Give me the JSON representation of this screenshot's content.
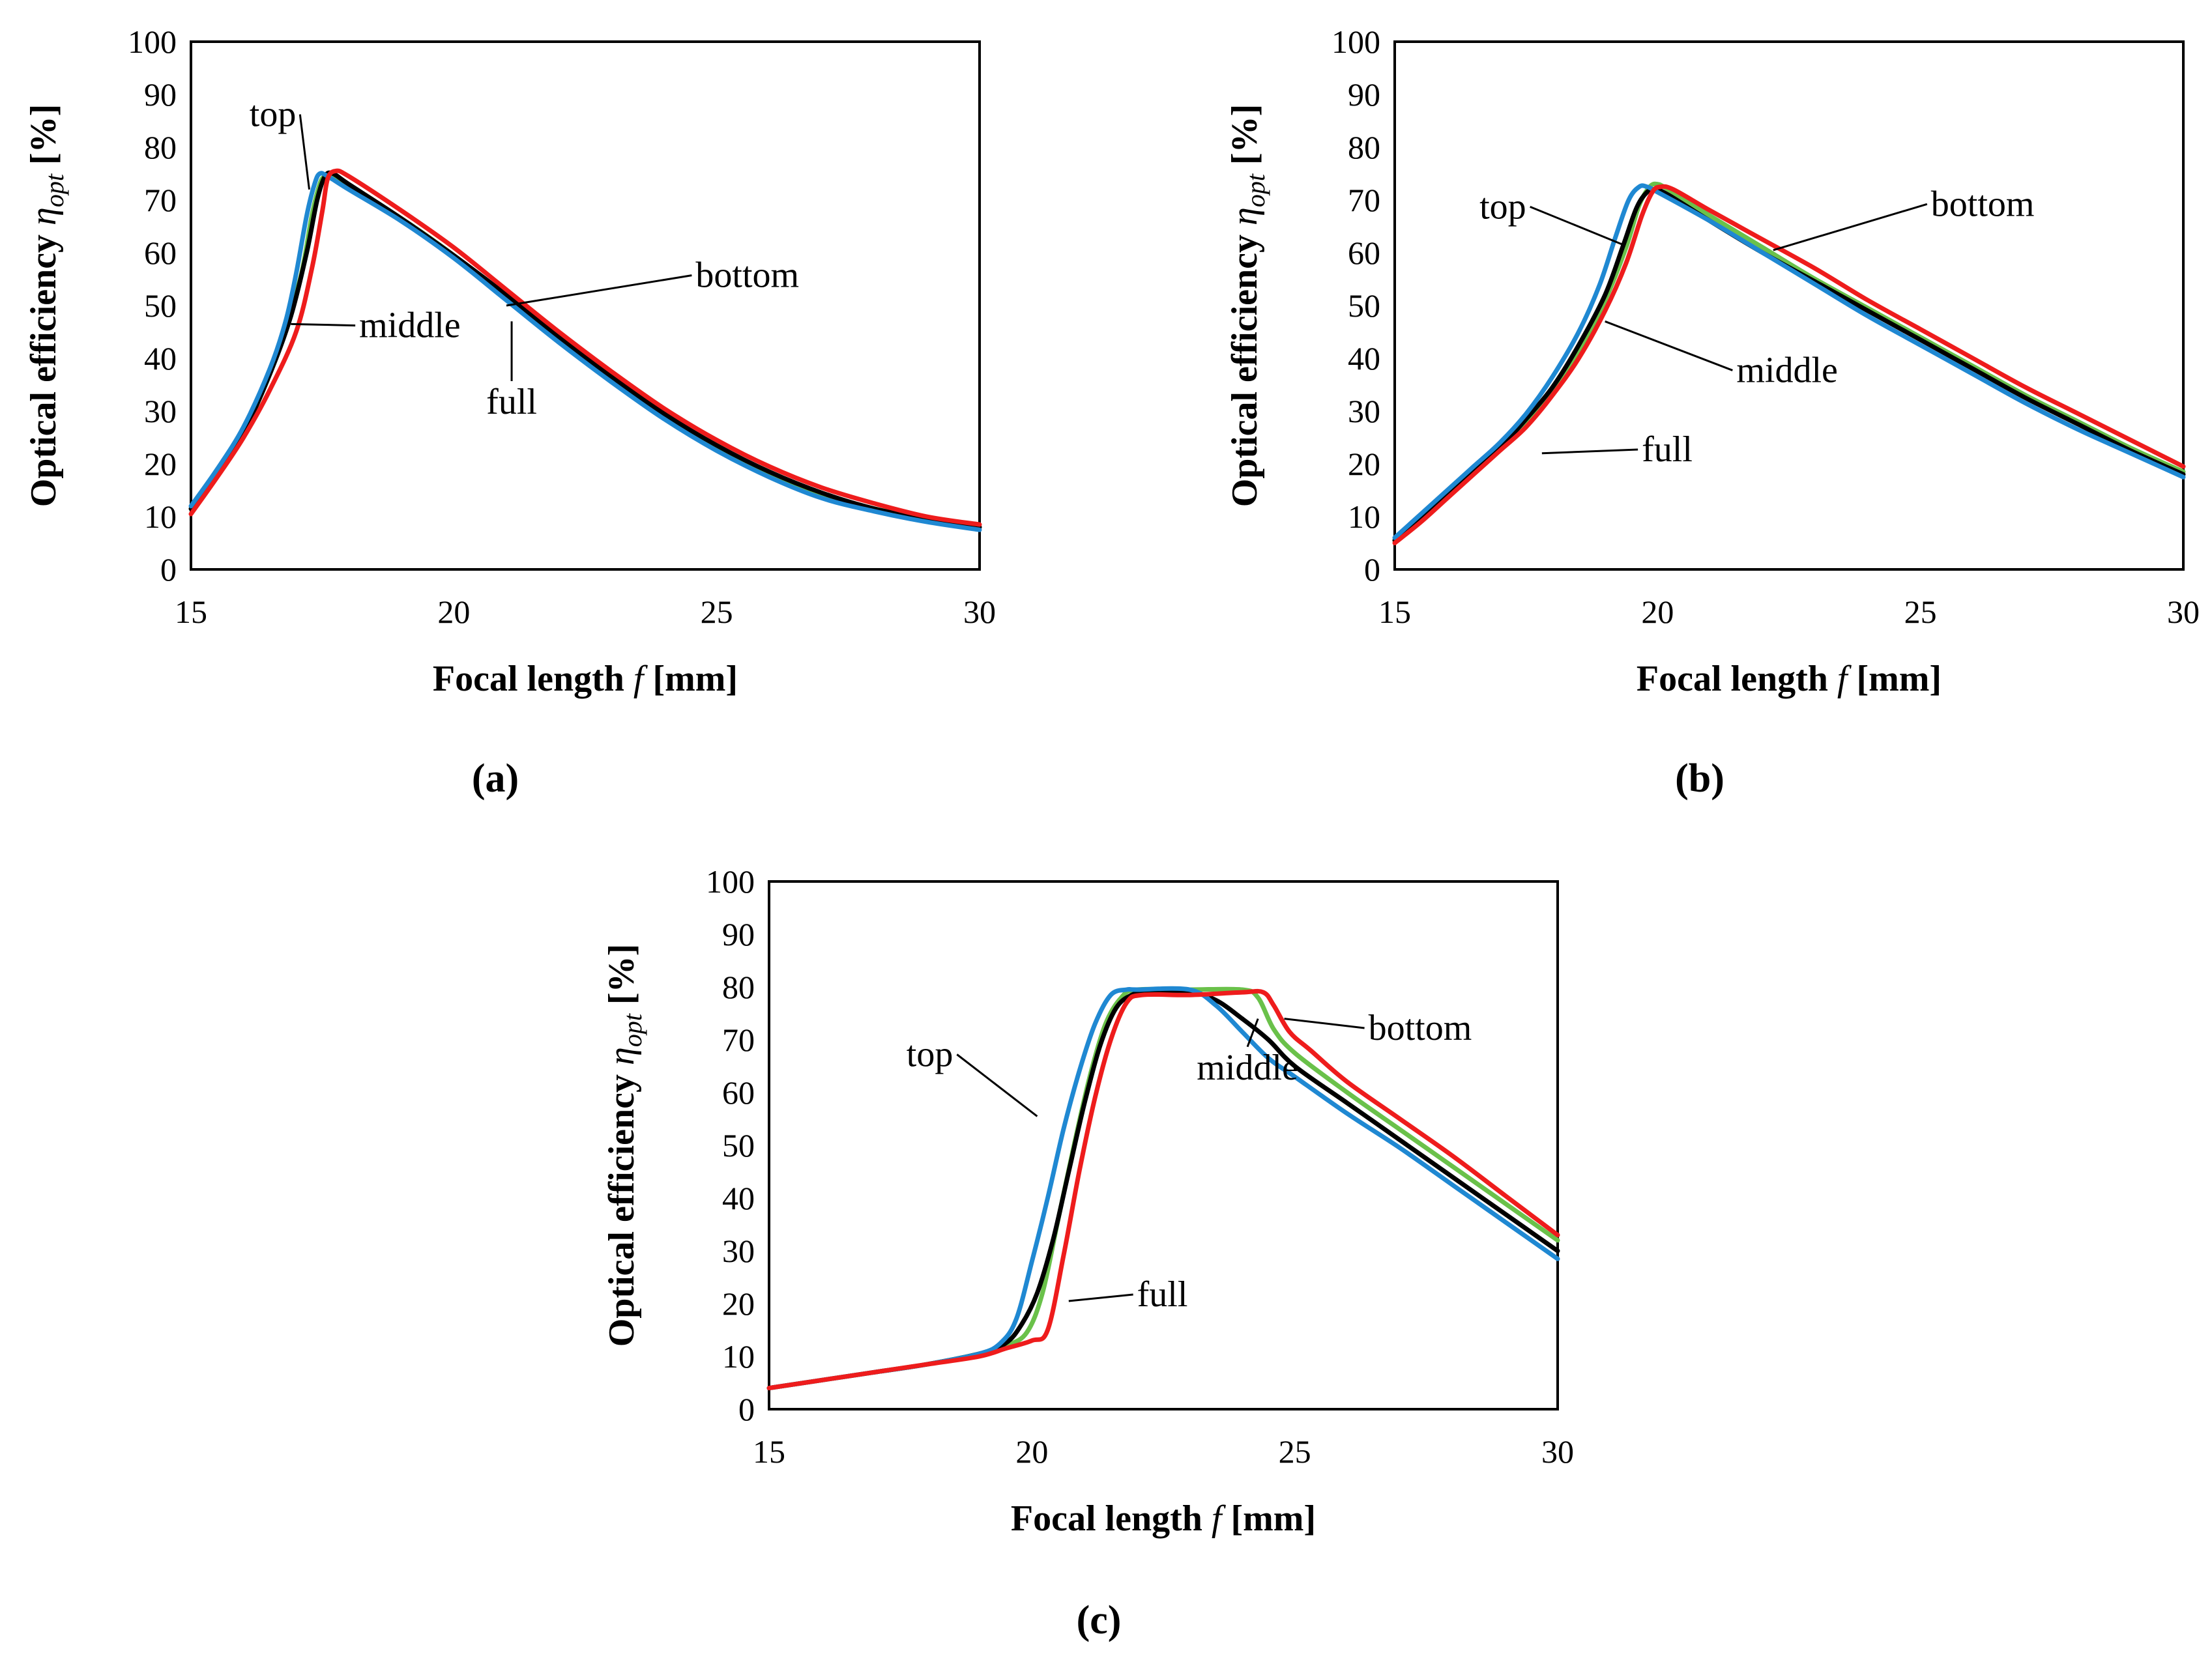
{
  "colors": {
    "top": "#1f88d2",
    "middle": "#6ac14a",
    "bottom": "#ee1c1c",
    "full": "#000000"
  },
  "chart_data": [
    {
      "panel": "(a)",
      "type": "line",
      "xlabel_main": "Focal length ",
      "xlabel_var": "f",
      "xlabel_unit": " [mm]",
      "ylabel_main": "Optical efficiency ",
      "ylabel_var": "η",
      "ylabel_sub": "opt",
      "ylabel_unit": " [%]",
      "xlim": [
        15,
        30
      ],
      "ylim": [
        0,
        100
      ],
      "xticks": [
        15,
        20,
        25,
        30
      ],
      "yticks": [
        0,
        10,
        20,
        30,
        40,
        50,
        60,
        70,
        80,
        90,
        100
      ],
      "annotations": [
        {
          "text": "top",
          "series": "top",
          "label_xy": [
            17.0,
            84
          ],
          "point_xy": [
            17.25,
            72
          ]
        },
        {
          "text": "bottom",
          "series": "bottom",
          "label_xy": [
            24.6,
            53.5
          ],
          "point_xy": [
            21.0,
            50
          ]
        },
        {
          "text": "middle",
          "series": "middle",
          "label_xy": [
            18.2,
            44
          ],
          "point_xy": [
            16.9,
            46.5
          ]
        },
        {
          "text": "full",
          "series": "full",
          "label_xy": [
            21.1,
            29.5
          ],
          "point_xy": [
            21.1,
            47
          ]
        }
      ],
      "series": [
        {
          "name": "top",
          "x": [
            15,
            15.5,
            16,
            16.5,
            16.8,
            17.0,
            17.2,
            17.35,
            17.45,
            17.6,
            18,
            19,
            20,
            21,
            22,
            23,
            24,
            25,
            26,
            27,
            28,
            29,
            30
          ],
          "y": [
            12,
            19,
            27,
            38,
            47,
            56,
            67,
            73,
            75,
            74.5,
            72,
            66,
            59,
            51,
            43,
            35.5,
            28.5,
            22.5,
            17.5,
            13.5,
            11,
            9,
            7.5
          ]
        },
        {
          "name": "middle",
          "x": [
            15,
            15.5,
            16,
            16.5,
            16.8,
            17.1,
            17.3,
            17.45,
            17.55,
            17.7,
            18,
            19,
            20,
            21,
            22,
            23,
            24,
            25,
            26,
            27,
            28,
            29,
            30
          ],
          "y": [
            11.5,
            18.5,
            26,
            37,
            46,
            56,
            67,
            73,
            74.5,
            74.5,
            72.5,
            66.5,
            59.5,
            51.5,
            43.5,
            36,
            29,
            23,
            18,
            14,
            11.5,
            9.5,
            8
          ]
        },
        {
          "name": "bottom",
          "x": [
            15,
            15.5,
            16,
            16.5,
            17.0,
            17.3,
            17.5,
            17.6,
            17.75,
            18,
            19,
            20,
            21,
            22,
            23,
            24,
            25,
            26,
            27,
            28,
            29,
            30
          ],
          "y": [
            10.5,
            17.5,
            25,
            34,
            45,
            57,
            68,
            74,
            75.5,
            74.5,
            68,
            61,
            53,
            45,
            37.5,
            30.5,
            24.5,
            19.5,
            15.5,
            12.5,
            10,
            8.5
          ]
        },
        {
          "name": "full",
          "x": [
            15,
            15.5,
            16,
            16.5,
            16.9,
            17.2,
            17.4,
            17.55,
            17.7,
            18,
            19,
            20,
            21,
            22,
            23,
            24,
            25,
            26,
            27,
            28,
            29,
            30
          ],
          "y": [
            11.5,
            18.5,
            26,
            37,
            48,
            60,
            70,
            74.5,
            75,
            73,
            66.5,
            59.5,
            52,
            44,
            36.5,
            29.5,
            23.5,
            18.5,
            14.5,
            11.5,
            9.5,
            8
          ]
        }
      ]
    },
    {
      "panel": "(b)",
      "type": "line",
      "xlabel_main": "Focal length ",
      "xlabel_var": "f",
      "xlabel_unit": " [mm]",
      "ylabel_main": "Optical efficiency ",
      "ylabel_var": "η",
      "ylabel_sub": "opt",
      "ylabel_unit": " [%]",
      "xlim": [
        15,
        30
      ],
      "ylim": [
        0,
        100
      ],
      "xticks": [
        15,
        20,
        25,
        30
      ],
      "yticks": [
        0,
        10,
        20,
        30,
        40,
        50,
        60,
        70,
        80,
        90,
        100
      ],
      "annotations": [
        {
          "text": "top",
          "series": "top",
          "label_xy": [
            17.5,
            66.5
          ],
          "point_xy": [
            19.35,
            61.5
          ]
        },
        {
          "text": "bottom",
          "series": "bottom",
          "label_xy": [
            25.2,
            67
          ],
          "point_xy": [
            22.2,
            60.5
          ]
        },
        {
          "text": "middle",
          "series": "middle",
          "label_xy": [
            21.5,
            35.5
          ],
          "point_xy": [
            19.0,
            47
          ]
        },
        {
          "text": "full",
          "series": "full",
          "label_xy": [
            19.7,
            20.5
          ],
          "point_xy": [
            17.8,
            22
          ]
        }
      ],
      "series": [
        {
          "name": "top",
          "x": [
            15,
            15.5,
            16,
            16.5,
            17,
            17.5,
            18,
            18.5,
            18.9,
            19.2,
            19.45,
            19.65,
            19.8,
            20,
            21,
            22,
            23,
            24,
            25,
            26,
            27,
            28,
            29,
            30
          ],
          "y": [
            6,
            10.5,
            15,
            19.5,
            24,
            29.5,
            36.5,
            45,
            54,
            63,
            70,
            72.5,
            72.5,
            71.5,
            66,
            60,
            54,
            48,
            42.5,
            37,
            31.5,
            26.5,
            22,
            17.5
          ]
        },
        {
          "name": "middle",
          "x": [
            15,
            15.5,
            16,
            16.5,
            17,
            17.5,
            18,
            18.5,
            19,
            19.4,
            19.65,
            19.85,
            20,
            20.2,
            21,
            22,
            23,
            24,
            25,
            26,
            27,
            28,
            29,
            30
          ],
          "y": [
            5.5,
            9.5,
            14,
            18.5,
            23,
            28,
            34,
            41.5,
            51,
            61,
            69,
            72.5,
            73,
            72,
            67,
            61,
            55,
            49.5,
            44,
            38.5,
            33,
            28,
            23,
            18.5
          ]
        },
        {
          "name": "bottom",
          "x": [
            15,
            15.5,
            16,
            16.5,
            17,
            17.5,
            18,
            18.5,
            19,
            19.4,
            19.7,
            19.9,
            20.05,
            20.3,
            21,
            22,
            23,
            24,
            25,
            26,
            27,
            28,
            29,
            30
          ],
          "y": [
            5,
            9,
            13.5,
            18,
            22.5,
            27,
            33,
            40,
            49,
            58,
            67,
            71.5,
            72.5,
            72,
            68,
            62.5,
            57,
            51,
            45.5,
            40,
            34.5,
            29.5,
            24.5,
            19.5
          ]
        },
        {
          "name": "full",
          "x": [
            15,
            15.5,
            16,
            16.5,
            17,
            17.5,
            18,
            18.5,
            19,
            19.35,
            19.6,
            19.8,
            19.95,
            20.2,
            21,
            22,
            23,
            24,
            25,
            26,
            27,
            28,
            29,
            30
          ],
          "y": [
            5.5,
            9.5,
            14,
            18.5,
            23,
            28.5,
            34.5,
            42.5,
            52,
            61.5,
            68.5,
            71.5,
            72,
            71,
            66,
            60,
            54.5,
            49,
            43.5,
            38,
            32.5,
            27.5,
            22.5,
            18
          ]
        }
      ]
    },
    {
      "panel": "(c)",
      "type": "line",
      "xlabel_main": "Focal length ",
      "xlabel_var": "f",
      "xlabel_unit": " [mm]",
      "ylabel_main": "Optical efficiency ",
      "ylabel_var": "η",
      "ylabel_sub": "opt",
      "ylabel_unit": " [%]",
      "xlim": [
        15,
        30
      ],
      "ylim": [
        0,
        100
      ],
      "xticks": [
        15,
        20,
        25,
        30
      ],
      "yticks": [
        0,
        10,
        20,
        30,
        40,
        50,
        60,
        70,
        80,
        90,
        100
      ],
      "annotations": [
        {
          "text": "top",
          "series": "top",
          "label_xy": [
            18.5,
            65
          ],
          "point_xy": [
            20.1,
            55.5
          ]
        },
        {
          "text": "bottom",
          "series": "bottom",
          "label_xy": [
            26.4,
            70
          ],
          "point_xy": [
            24.8,
            74
          ]
        },
        {
          "text": "middle",
          "series": "middle",
          "label_xy": [
            24.1,
            62.5
          ],
          "point_xy": [
            24.3,
            74
          ]
        },
        {
          "text": "full",
          "series": "full",
          "label_xy": [
            22.0,
            19.5
          ],
          "point_xy": [
            20.7,
            20.5
          ]
        }
      ],
      "series": [
        {
          "name": "top",
          "x": [
            15,
            16,
            17,
            18,
            19,
            19.4,
            19.7,
            20.0,
            20.3,
            20.6,
            20.9,
            21.2,
            21.5,
            21.8,
            22,
            23,
            23.5,
            24,
            24.5,
            25,
            26,
            27,
            28,
            29,
            30
          ],
          "y": [
            4,
            5.5,
            7,
            8.5,
            10.5,
            12.5,
            17,
            28,
            40,
            53,
            64,
            73,
            78.5,
            79.5,
            79.5,
            79.5,
            76.5,
            71.5,
            66.5,
            63,
            56,
            49.5,
            42.5,
            35.5,
            28.5
          ]
        },
        {
          "name": "middle",
          "x": [
            15,
            16,
            17,
            18,
            19,
            19.5,
            19.9,
            20.2,
            20.5,
            20.8,
            21.1,
            21.4,
            21.7,
            22,
            23,
            24,
            24.3,
            24.6,
            25,
            26,
            27,
            28,
            29,
            30
          ],
          "y": [
            4,
            5.5,
            7,
            8.5,
            10.5,
            12,
            14.5,
            22,
            36,
            50,
            63,
            73,
            78,
            79.5,
            79.5,
            79.5,
            78,
            72,
            67.5,
            60,
            53,
            46,
            39,
            32
          ]
        },
        {
          "name": "bottom",
          "x": [
            15,
            16,
            17,
            18,
            19,
            19.5,
            20,
            20.3,
            20.6,
            20.9,
            21.2,
            21.5,
            21.8,
            22.1,
            23,
            24,
            24.4,
            24.6,
            24.9,
            25.3,
            26,
            27,
            28,
            29,
            30
          ],
          "y": [
            4,
            5.5,
            7,
            8.5,
            10,
            11.5,
            13,
            15,
            29,
            45,
            59,
            70,
            77,
            78.5,
            78.5,
            79,
            79,
            76.5,
            71.5,
            68,
            62,
            55,
            48,
            40.5,
            33
          ]
        },
        {
          "name": "full",
          "x": [
            15,
            16,
            17,
            18,
            19,
            19.5,
            19.8,
            20.1,
            20.4,
            20.7,
            21.0,
            21.3,
            21.6,
            21.9,
            22.2,
            23,
            23.5,
            24,
            24.5,
            25,
            26,
            27,
            28,
            29,
            30
          ],
          "y": [
            4,
            5.5,
            7,
            8.5,
            10.5,
            12.5,
            16,
            22,
            32,
            45,
            58,
            69,
            76,
            78.5,
            79,
            79,
            77.5,
            74,
            70,
            65,
            58,
            51,
            44,
            37,
            30
          ]
        }
      ]
    }
  ]
}
